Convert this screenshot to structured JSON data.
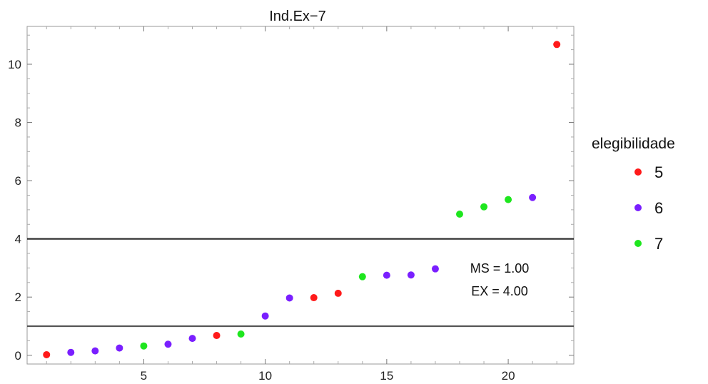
{
  "chart_data": {
    "type": "scatter",
    "title": "Ind.Ex−7",
    "xlabel": "",
    "ylabel": "",
    "xlim": [
      0.2,
      22.7
    ],
    "ylim": [
      -0.3,
      11.3
    ],
    "xticks": [
      5,
      10,
      15,
      20
    ],
    "yticks": [
      0,
      2,
      4,
      6,
      8,
      10
    ],
    "grid": false,
    "legend": {
      "title": "elegibilidade",
      "placement": "right",
      "entries": [
        {
          "label": "5",
          "color": "#ff1a1a"
        },
        {
          "label": "6",
          "color": "#7a1fff"
        },
        {
          "label": "7",
          "color": "#1ee61e"
        }
      ]
    },
    "reference_lines": [
      {
        "y": 4.0,
        "color": "#2a2a2a"
      },
      {
        "y": 1.0,
        "color": "#555555"
      }
    ],
    "annotations": [
      "MS = 1.00",
      "EX = 4.00"
    ],
    "series": [
      {
        "name": "5",
        "color": "#ff1a1a",
        "x": [
          1,
          8,
          12,
          13,
          22
        ],
        "y": [
          0.02,
          0.68,
          1.98,
          2.13,
          10.68
        ]
      },
      {
        "name": "6",
        "color": "#7a1fff",
        "x": [
          2,
          3,
          4,
          6,
          7,
          10,
          11,
          15,
          16,
          17,
          21
        ],
        "y": [
          0.1,
          0.15,
          0.25,
          0.38,
          0.58,
          1.35,
          1.97,
          2.75,
          2.76,
          2.97,
          5.42
        ]
      },
      {
        "name": "7",
        "color": "#1ee61e",
        "x": [
          5,
          9,
          14,
          18,
          19,
          20
        ],
        "y": [
          0.32,
          0.73,
          2.7,
          4.85,
          5.1,
          5.35
        ]
      }
    ]
  }
}
